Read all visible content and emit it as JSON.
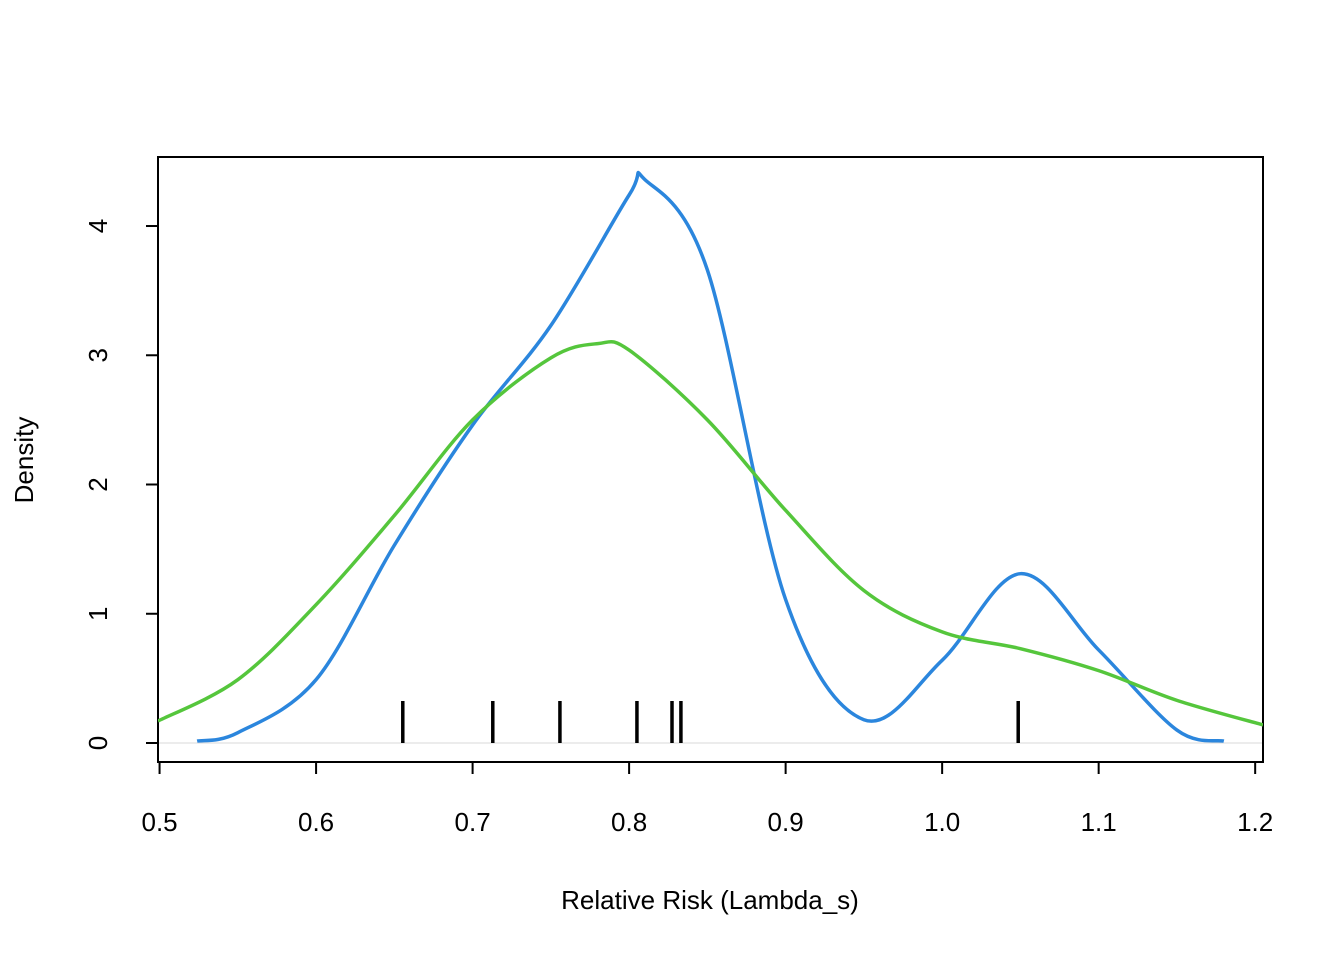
{
  "chart_data": {
    "type": "line",
    "xlabel": "Relative Risk (Lambda_s)",
    "ylabel": "Density",
    "xlim": [
      0.499,
      1.205
    ],
    "ylim": [
      -0.147,
      4.534
    ],
    "xticks": [
      0.5,
      0.6,
      0.7,
      0.8,
      0.9,
      {
        "value": 1,
        "label": "1.0"
      },
      1.1,
      1.2
    ],
    "yticks": [
      0,
      1,
      2,
      3,
      4
    ],
    "series": [
      {
        "color": "#2b86dd",
        "x": [
          0.524,
          0.55,
          0.6,
          0.65,
          0.7,
          0.75,
          0.8,
          0.81,
          0.85,
          0.9,
          0.95,
          1.0,
          1.05,
          1.1,
          1.15,
          1.18
        ],
        "values": [
          0.015,
          0.08,
          0.49,
          1.53,
          2.46,
          3.23,
          4.24,
          4.36,
          3.66,
          1.11,
          0.18,
          0.64,
          1.31,
          0.72,
          0.1,
          0.015
        ]
      },
      {
        "color": "#55c63c",
        "x": [
          0.499,
          0.55,
          0.6,
          0.65,
          0.7,
          0.75,
          0.78,
          0.8,
          0.85,
          0.9,
          0.95,
          1.0,
          1.05,
          1.1,
          1.15,
          1.205
        ],
        "values": [
          0.17,
          0.49,
          1.07,
          1.76,
          2.5,
          2.98,
          3.09,
          3.04,
          2.5,
          1.8,
          1.18,
          0.86,
          0.73,
          0.56,
          0.33,
          0.14
        ]
      }
    ],
    "rug": [
      0.6554,
      0.7129,
      0.7558,
      0.805,
      0.8274,
      0.8331,
      1.0486
    ],
    "rug_color": "#000000"
  }
}
